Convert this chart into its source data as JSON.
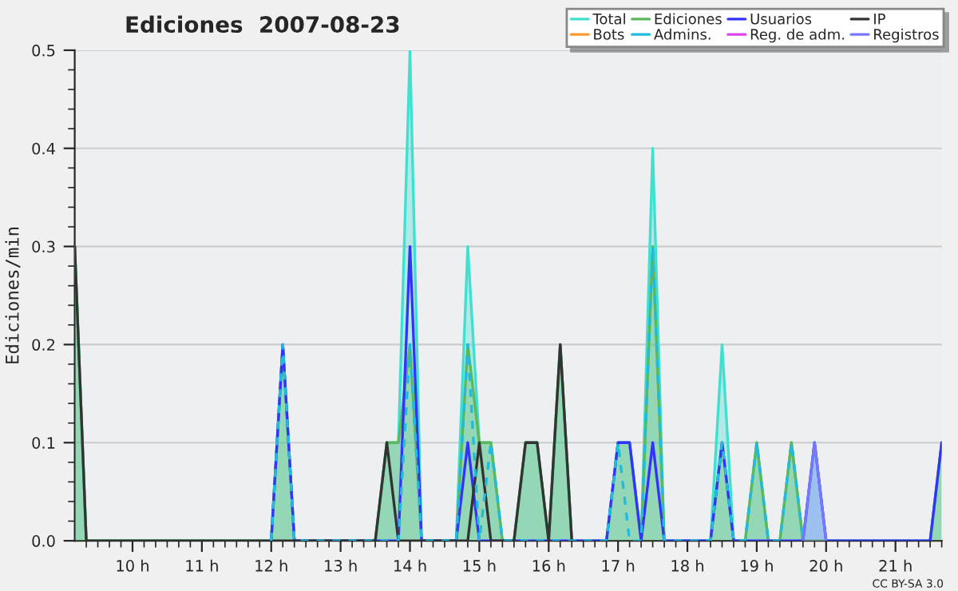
{
  "chart_data": {
    "type": "line",
    "title": "Ediciones  2007-08-23",
    "ylabel": "Ediciones/min",
    "xlim": [
      9.1667,
      21.6667
    ],
    "ylim": [
      0,
      0.5
    ],
    "xticks": [
      {
        "value": 10,
        "label": "10 h"
      },
      {
        "value": 11,
        "label": "11 h"
      },
      {
        "value": 12,
        "label": "12 h"
      },
      {
        "value": 13,
        "label": "13 h"
      },
      {
        "value": 14,
        "label": "14 h"
      },
      {
        "value": 15,
        "label": "15 h"
      },
      {
        "value": 16,
        "label": "16 h"
      },
      {
        "value": 17,
        "label": "17 h"
      },
      {
        "value": 18,
        "label": "18 h"
      },
      {
        "value": 19,
        "label": "19 h"
      },
      {
        "value": 20,
        "label": "20 h"
      },
      {
        "value": 21,
        "label": "21 h"
      }
    ],
    "yticks": [
      {
        "value": 0,
        "label": "0.0"
      },
      {
        "value": 0.1,
        "label": "0.1"
      },
      {
        "value": 0.2,
        "label": "0.2"
      },
      {
        "value": 0.3,
        "label": "0.3"
      },
      {
        "value": 0.4,
        "label": "0.4"
      },
      {
        "value": 0.5,
        "label": "0.5"
      }
    ],
    "grid": "y",
    "legend": "top right",
    "annotations": [
      "CC BY-SA 3.0"
    ],
    "series": [
      {
        "name": "Total",
        "color": "#40e0d0",
        "type": "area",
        "x": [
          9.1667,
          9.3333,
          12.0,
          12.1667,
          12.3333,
          13.5,
          13.6667,
          13.8333,
          14.0,
          14.1667,
          14.6667,
          14.8333,
          15.0,
          15.1667,
          15.3333,
          15.5,
          15.6667,
          15.8333,
          16.0,
          16.1667,
          16.3333,
          16.8333,
          17.0,
          17.1667,
          17.3333,
          17.5,
          17.6667,
          18.3333,
          18.5,
          18.6667,
          18.8333,
          19.0,
          19.1667,
          19.3333,
          19.5,
          19.6667,
          19.8333,
          20.0,
          21.5,
          21.6667
        ],
        "values": [
          0.3,
          0,
          0,
          0.2,
          0,
          0,
          0.1,
          0.1,
          0.5,
          0,
          0,
          0.3,
          0.1,
          0.1,
          0,
          0,
          0.1,
          0.1,
          0,
          0.2,
          0,
          0,
          0.1,
          0.1,
          0,
          0.4,
          0,
          0,
          0.2,
          0,
          0,
          0.1,
          0,
          0,
          0.1,
          0,
          0.1,
          0,
          0,
          0.1
        ]
      },
      {
        "name": "Ediciones",
        "color": "#5cb85c",
        "type": "area",
        "x": [
          9.1667,
          9.3333,
          12.0,
          12.1667,
          12.3333,
          13.5,
          13.6667,
          13.8333,
          14.0,
          14.1667,
          14.6667,
          14.8333,
          15.0,
          15.1667,
          15.3333,
          15.5,
          15.6667,
          15.8333,
          16.0,
          16.1667,
          16.3333,
          16.8333,
          17.0,
          17.1667,
          17.3333,
          17.5,
          17.6667,
          18.3333,
          18.5,
          18.6667,
          18.8333,
          19.0,
          19.1667,
          19.3333,
          19.5,
          19.6667,
          21.5,
          21.6667
        ],
        "values": [
          0.3,
          0,
          0,
          0.2,
          0,
          0,
          0.1,
          0.1,
          0.2,
          0,
          0,
          0.2,
          0.1,
          0.1,
          0,
          0,
          0.1,
          0.1,
          0,
          0.2,
          0,
          0,
          0.1,
          0.1,
          0,
          0.3,
          0,
          0,
          0.1,
          0,
          0,
          0.1,
          0,
          0,
          0.1,
          0,
          0,
          0.1
        ]
      },
      {
        "name": "Usuarios",
        "color": "#3333ff",
        "x": [
          12.0,
          12.1667,
          12.3333,
          13.8333,
          14.0,
          14.1667,
          14.6667,
          14.8333,
          15.0,
          16.8333,
          17.0,
          17.1667,
          17.3333,
          17.5,
          17.6667,
          18.3333,
          18.5,
          18.6667,
          19.6667,
          19.8333,
          20.0,
          21.5,
          21.6667
        ],
        "values": [
          0,
          0.2,
          0,
          0,
          0.3,
          0,
          0,
          0.1,
          0,
          0,
          0.1,
          0.1,
          0,
          0.1,
          0,
          0,
          0.1,
          0,
          0,
          0.1,
          0,
          0,
          0.1
        ]
      },
      {
        "name": "IP",
        "color": "#333333",
        "x": [
          9.1667,
          9.3333,
          13.5,
          13.6667,
          13.8333,
          14.8333,
          15.0,
          15.1667,
          15.5,
          15.6667,
          15.8333,
          16.0,
          16.1667,
          16.3333
        ],
        "values": [
          0.3,
          0,
          0,
          0.1,
          0,
          0,
          0.1,
          0,
          0,
          0.1,
          0.1,
          0,
          0.2,
          0
        ]
      },
      {
        "name": "Bots",
        "color": "#ff9933"
      },
      {
        "name": "Admins.",
        "color": "#22bbdd",
        "line_style": "dashed",
        "x": [
          12.0,
          12.1667,
          12.3333,
          13.8333,
          14.0,
          14.1667,
          14.6667,
          14.8333,
          15.0,
          15.1667,
          15.3333,
          16.8333,
          17.0,
          17.1667,
          17.3333,
          17.5,
          17.6667,
          18.3333,
          18.5,
          18.6667,
          18.8333,
          19.0,
          19.1667,
          19.3333,
          19.5,
          19.6667
        ],
        "values": [
          0,
          0.2,
          0,
          0,
          0.2,
          0,
          0,
          0.2,
          0,
          0.1,
          0,
          0,
          0.1,
          0,
          0,
          0.3,
          0,
          0,
          0.1,
          0,
          0,
          0.1,
          0,
          0,
          0.1,
          0
        ]
      },
      {
        "name": "Reg. de adm.",
        "color": "#dd44ee"
      },
      {
        "name": "Registros",
        "color": "#7777ff",
        "type": "area",
        "x": [
          19.6667,
          19.8333,
          20.0
        ],
        "values": [
          0,
          0.1,
          0
        ]
      }
    ]
  }
}
